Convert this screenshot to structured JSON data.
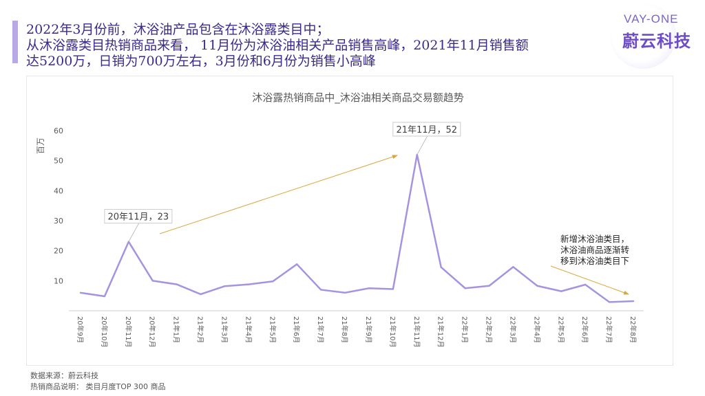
{
  "headline": {
    "line1": "2022年3月份前，沐浴油产品包含在沐浴露类目中；",
    "line2": "从沐浴露类目热销商品来看， 11月份为沐浴油相关产品销售高峰，2021年11月销售额",
    "line3": "达5200万，日销为700万左右，3月份和6月份为销售小高峰"
  },
  "logo": {
    "en": "VAY-ONE",
    "cn": "蔚云科技"
  },
  "colors": {
    "line": "#a593e0",
    "arrow": "#d9a63a",
    "axis": "#cccccc",
    "text": "#595959",
    "title": "#595959"
  },
  "chart_data": {
    "type": "line",
    "title": "沐浴露热销商品中_沐浴油相关商品交易额趋势",
    "ylabel": "百万",
    "ylim": [
      0,
      60
    ],
    "yticks": [
      10,
      20,
      30,
      40,
      50,
      60
    ],
    "categories": [
      "20年9月",
      "20年10月",
      "20年11月",
      "20年12月",
      "21年1月",
      "21年2月",
      "21年3月",
      "21年4月",
      "21年5月",
      "21年6月",
      "21年7月",
      "21年8月",
      "21年9月",
      "21年10月",
      "21年11月",
      "21年12月",
      "22年1月",
      "22年2月",
      "22年3月",
      "22年4月",
      "22年5月",
      "22年6月",
      "22年7月",
      "22年8月"
    ],
    "values": [
      6,
      4.8,
      23,
      10,
      8.8,
      5.5,
      8.2,
      8.8,
      9.8,
      15.5,
      7,
      6,
      7.5,
      7.2,
      52,
      14.5,
      7.5,
      8.3,
      14.6,
      8.3,
      6.5,
      8.7,
      2.9,
      3.2
    ],
    "annotations": [
      {
        "label": "20年11月，23",
        "index": 2
      },
      {
        "label": "21年11月，52",
        "index": 14
      }
    ],
    "note": [
      "新增沐浴油类目，",
      "沐浴油商品逐渐转",
      "移到沐浴油类目下"
    ],
    "grid": false,
    "legend": "none"
  },
  "footnotes": {
    "source": "数据来源：蔚云科技",
    "desc": "热销商品说明： 类目月度TOP 300 商品"
  }
}
